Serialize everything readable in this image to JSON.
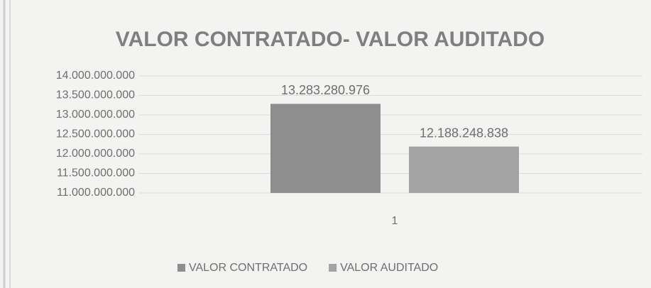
{
  "chart_data": {
    "type": "bar",
    "title": "VALOR CONTRATADO- VALOR AUDITADO",
    "categories": [
      "1"
    ],
    "series": [
      {
        "name": "VALOR CONTRATADO",
        "color": "#8e8e8e",
        "values": [
          13283280976
        ],
        "value_labels": [
          "13.283.280.976"
        ]
      },
      {
        "name": "VALOR AUDITADO",
        "color": "#a3a3a3",
        "values": [
          12188248838
        ],
        "value_labels": [
          "12.188.248.838"
        ]
      }
    ],
    "ylim": [
      11000000000,
      14000000000
    ],
    "yticks": [
      {
        "value": 11000000000,
        "label": "11.000.000.000"
      },
      {
        "value": 11500000000,
        "label": "11.500.000.000"
      },
      {
        "value": 12000000000,
        "label": "12.000.000.000"
      },
      {
        "value": 12500000000,
        "label": "12.500.000.000"
      },
      {
        "value": 13000000000,
        "label": "13.000.000.000"
      },
      {
        "value": 13500000000,
        "label": "13.500.000.000"
      },
      {
        "value": 14000000000,
        "label": "14.000.000.000"
      }
    ],
    "grid": true,
    "legend": "bottom"
  }
}
